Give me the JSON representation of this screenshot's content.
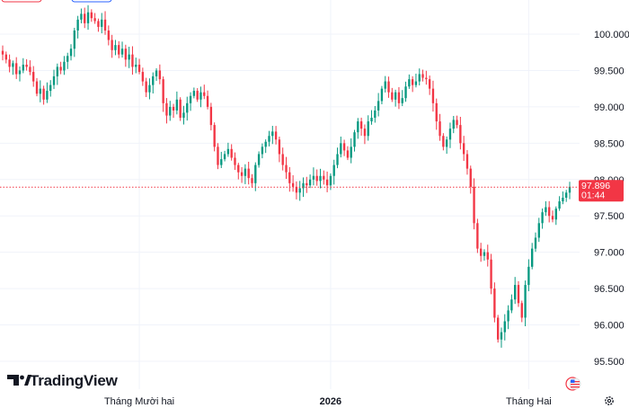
{
  "chart_data": {
    "type": "candlestick",
    "title": "",
    "xlabel": "",
    "ylabel": "",
    "ylim": [
      95.45,
      100.25
    ],
    "y_ticks": [
      "100.000",
      "99.500",
      "99.000",
      "98.500",
      "98.000",
      "97.500",
      "97.000",
      "96.500",
      "96.000",
      "95.500"
    ],
    "y_tick_values": [
      100.0,
      99.5,
      99.0,
      98.5,
      98.0,
      97.5,
      97.0,
      96.5,
      96.0,
      95.5
    ],
    "x_labels": [
      {
        "text": "Tháng Mười hai",
        "index": 40,
        "bold": false
      },
      {
        "text": "2026",
        "index": 96,
        "bold": true
      },
      {
        "text": "Tháng Hai",
        "index": 154,
        "bold": false
      }
    ],
    "grid": true,
    "up_color": "#089981",
    "down_color": "#f23645",
    "close_series": [
      99.72,
      99.65,
      99.55,
      99.6,
      99.45,
      99.5,
      99.58,
      99.55,
      99.48,
      99.35,
      99.18,
      99.25,
      99.1,
      99.22,
      99.3,
      99.42,
      99.55,
      99.5,
      99.62,
      99.7,
      99.8,
      100.05,
      100.2,
      100.28,
      100.15,
      100.3,
      100.22,
      100.18,
      100.1,
      100.2,
      100.05,
      99.92,
      99.78,
      99.85,
      99.72,
      99.8,
      99.65,
      99.72,
      99.55,
      99.58,
      99.48,
      99.35,
      99.2,
      99.3,
      99.42,
      99.5,
      99.38,
      99.05,
      98.88,
      99.0,
      98.95,
      99.1,
      98.85,
      98.92,
      99.05,
      99.15,
      99.22,
      99.1,
      99.2,
      99.15,
      99.0,
      98.75,
      98.45,
      98.2,
      98.28,
      98.35,
      98.42,
      98.3,
      98.2,
      98.1,
      98.05,
      98.15,
      98.02,
      97.95,
      98.2,
      98.35,
      98.45,
      98.52,
      98.6,
      98.66,
      98.55,
      98.35,
      98.2,
      98.1,
      97.95,
      97.9,
      97.82,
      97.88,
      97.95,
      97.92,
      98.0,
      98.05,
      97.98,
      98.05,
      98.0,
      97.92,
      98.05,
      98.2,
      98.35,
      98.5,
      98.4,
      98.3,
      98.45,
      98.65,
      98.8,
      98.7,
      98.6,
      98.8,
      98.85,
      98.95,
      99.08,
      99.25,
      99.35,
      99.2,
      99.1,
      99.2,
      99.05,
      99.12,
      99.28,
      99.38,
      99.3,
      99.35,
      99.45,
      99.4,
      99.38,
      99.25,
      99.05,
      98.8,
      98.6,
      98.45,
      98.55,
      98.7,
      98.82,
      98.75,
      98.5,
      98.35,
      98.15,
      97.9,
      97.4,
      97.05,
      96.95,
      97.0,
      96.9,
      96.5,
      96.1,
      95.8,
      95.9,
      96.05,
      96.2,
      96.35,
      96.55,
      96.3,
      96.1,
      96.55,
      96.8,
      97.05,
      97.2,
      97.4,
      97.55,
      97.62,
      97.5,
      97.45,
      97.6,
      97.7,
      97.75,
      97.82,
      97.9
    ],
    "last_price": {
      "value": 97.896,
      "label": "97.896",
      "countdown": "01:44",
      "color": "#f23645"
    }
  },
  "branding": {
    "logo_text": "TradingView",
    "logo_icon": "tradingview-logo-icon"
  },
  "controls": {
    "settings_icon": "gear-icon",
    "flag_icon": "us-flag-icon"
  }
}
